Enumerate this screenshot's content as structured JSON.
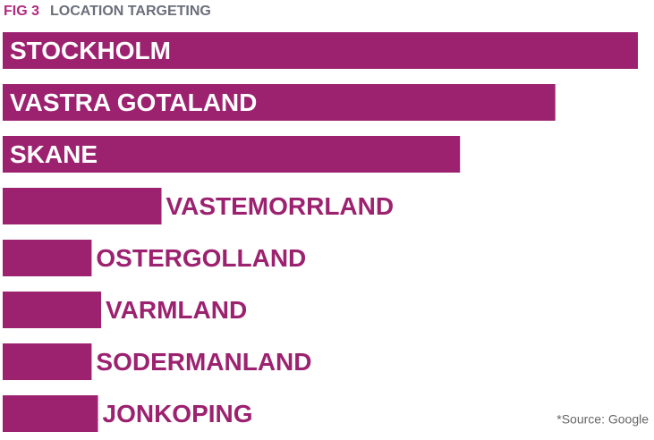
{
  "chart_data": {
    "type": "bar",
    "orientation": "horizontal",
    "figure_label": "FIG 3",
    "title": "LOCATION TARGETING",
    "source": "*Source: Google",
    "categories": [
      "STOCKHOLM",
      "VASTRA GOTALAND",
      "SKANE",
      "VASTEMORRLAND",
      "OSTERGOLLAND",
      "VARMLAND",
      "SODERMANLAND",
      "JONKOPING"
    ],
    "values": [
      100,
      87,
      72,
      25,
      14,
      15.5,
      14,
      15
    ],
    "color": "#9c2270",
    "label_color_inside": "#ffffff"
  }
}
